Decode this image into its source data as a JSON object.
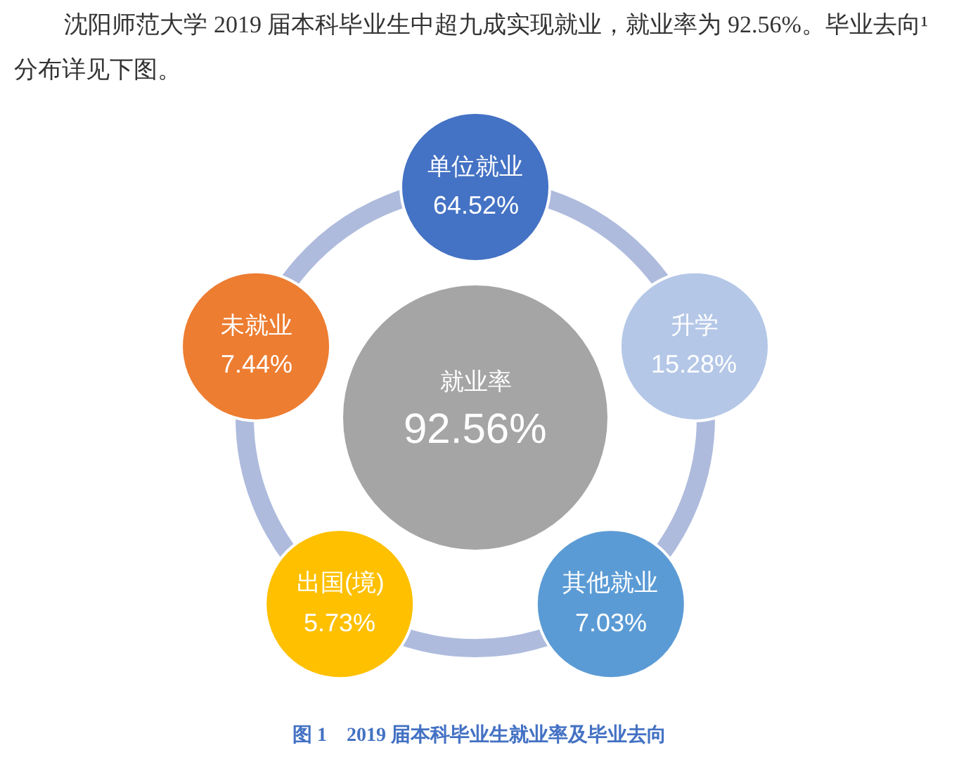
{
  "chart_data": {
    "type": "other",
    "title": "图 1　2019 届本科毕业生就业率及毕业去向",
    "annotations": [
      "沈阳师范大学 2019 届本科毕业生中超九成实现就业，就业率为 92.56%。毕业去向¹分布详见下图。"
    ],
    "categories": [
      "就业率",
      "单位就业",
      "升学",
      "其他就业",
      "出国(境)",
      "未就业"
    ],
    "values": [
      92.56,
      64.52,
      15.28,
      7.03,
      5.73,
      7.44
    ],
    "value_labels": [
      "92.56%",
      "64.52%",
      "15.28%",
      "7.03%",
      "5.73%",
      "7.44%"
    ],
    "colors": [
      "#a5a5a5",
      "#4472c4",
      "#b4c7e7",
      "#5b9bd5",
      "#ffc000",
      "#ed7d31"
    ]
  }
}
